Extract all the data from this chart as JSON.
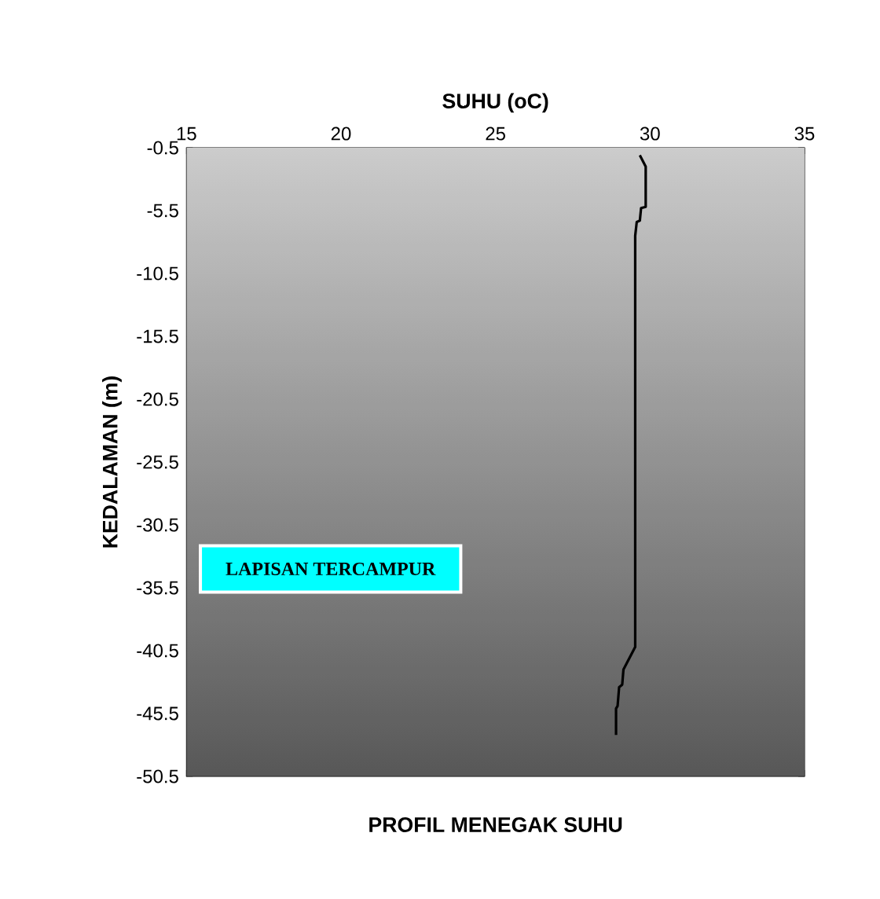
{
  "chart_data": {
    "type": "line",
    "title": "PROFIL MENEGAK SUHU",
    "xlabel": "SUHU (oC)",
    "ylabel": "KEDALAMAN (m)",
    "annotations": [
      "LAPISAN TERCAMPUR"
    ],
    "series": [
      {
        "color": "#000000",
        "x": [
          29.67,
          29.86,
          29.86,
          29.71,
          29.67,
          29.57,
          29.52,
          29.52,
          29.14,
          29.1,
          29.0,
          28.95,
          28.9,
          28.9
        ],
        "values": [
          -1.1,
          -2.0,
          -5.2,
          -5.3,
          -6.3,
          -6.4,
          -7.5,
          -40.2,
          -42.0,
          -43.2,
          -43.4,
          -44.9,
          -45.1,
          -47.2
        ]
      }
    ],
    "xlim": [
      15,
      35
    ],
    "xticks": [
      15,
      20,
      25,
      30,
      35
    ],
    "ylim": [
      -50.5,
      -0.5
    ],
    "yticks": [
      -0.5,
      -5.5,
      -10.5,
      -15.5,
      -20.5,
      -25.5,
      -30.5,
      -35.5,
      -40.5,
      -45.5,
      -50.5
    ],
    "marker": "none",
    "line_style": "solid"
  }
}
